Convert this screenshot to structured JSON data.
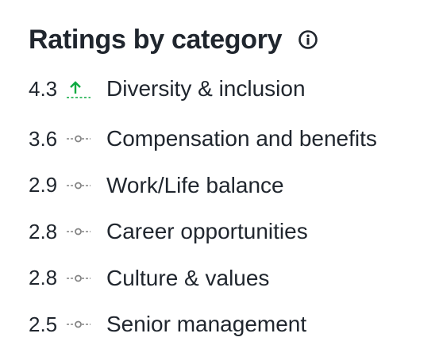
{
  "title": "Ratings by category",
  "icons": {
    "info": "info-circle-icon",
    "trend_up": "trend-up-arrow-icon",
    "trend_neutral": "trend-neutral-icon"
  },
  "colors": {
    "text": "#20262e",
    "trend_up": "#0caa41",
    "trend_neutral": "#868686"
  },
  "categories": [
    {
      "score": "4.3",
      "label": "Diversity & inclusion",
      "trend": "up"
    },
    {
      "score": "3.6",
      "label": "Compensation and benefits",
      "trend": "neutral"
    },
    {
      "score": "2.9",
      "label": "Work/Life balance",
      "trend": "neutral"
    },
    {
      "score": "2.8",
      "label": "Career opportunities",
      "trend": "neutral"
    },
    {
      "score": "2.8",
      "label": "Culture & values",
      "trend": "neutral"
    },
    {
      "score": "2.5",
      "label": "Senior management",
      "trend": "neutral"
    }
  ]
}
